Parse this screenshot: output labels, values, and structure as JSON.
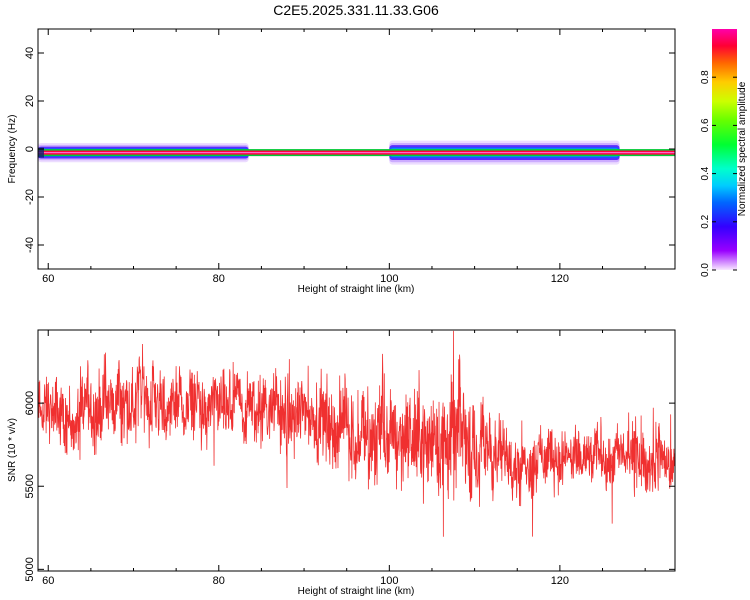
{
  "title": "C2E5.2025.331.11.33.G06",
  "chart_data": [
    {
      "type": "heatmap",
      "xlabel": "Height of straight line (km)",
      "ylabel": "Frequency (Hz)",
      "xlim": [
        58.8,
        133.5
      ],
      "ylim": [
        -50,
        50
      ],
      "xticks": [
        60,
        80,
        100,
        120
      ],
      "yticks": [
        -40,
        -20,
        0,
        20,
        40
      ],
      "colorbar": {
        "label": "Normalized spectral amplitude",
        "ticks": [
          "0.0",
          "0.2",
          "0.4",
          "0.6",
          "0.8"
        ],
        "range": [
          0,
          1
        ]
      },
      "band_center_hz": -1.5,
      "band_segments": [
        {
          "x": [
            58.8,
            83.5
          ],
          "half_width_hz": 4
        },
        {
          "x": [
            83.5,
            100
          ],
          "half_width_hz": 1.5
        },
        {
          "x": [
            100,
            127
          ],
          "half_width_hz": 5
        },
        {
          "x": [
            127,
            133.5
          ],
          "half_width_hz": 1.5
        }
      ]
    },
    {
      "type": "line",
      "xlabel": "Height of straight line (km)",
      "ylabel": "SNR (10 * v/v)",
      "xlim": [
        58.8,
        133.5
      ],
      "ylim": [
        4990,
        6440
      ],
      "xticks": [
        60,
        80,
        100,
        120
      ],
      "yticks": [
        5000,
        5500,
        6000
      ],
      "series": [
        {
          "color": "#f03030",
          "envelope": [
            {
              "x": 58.8,
              "mean": 5950,
              "amp": 250
            },
            {
              "x": 62,
              "mean": 5920,
              "amp": 280
            },
            {
              "x": 66,
              "mean": 5980,
              "amp": 300
            },
            {
              "x": 70,
              "mean": 6030,
              "amp": 330
            },
            {
              "x": 75,
              "mean": 5980,
              "amp": 280
            },
            {
              "x": 80,
              "mean": 5940,
              "amp": 300
            },
            {
              "x": 85,
              "mean": 5920,
              "amp": 320
            },
            {
              "x": 90,
              "mean": 5900,
              "amp": 300
            },
            {
              "x": 95,
              "mean": 5820,
              "amp": 420
            },
            {
              "x": 100,
              "mean": 5800,
              "amp": 420
            },
            {
              "x": 105,
              "mean": 5780,
              "amp": 450
            },
            {
              "x": 109,
              "mean": 5820,
              "amp": 480
            },
            {
              "x": 113,
              "mean": 5700,
              "amp": 320
            },
            {
              "x": 118,
              "mean": 5650,
              "amp": 230
            },
            {
              "x": 125,
              "mean": 5660,
              "amp": 230
            },
            {
              "x": 133.5,
              "mean": 5650,
              "amp": 240
            }
          ]
        }
      ]
    }
  ],
  "colors": {
    "line": "#f03030",
    "band_core": "#ff0040",
    "band_edge": "#00cc33"
  }
}
